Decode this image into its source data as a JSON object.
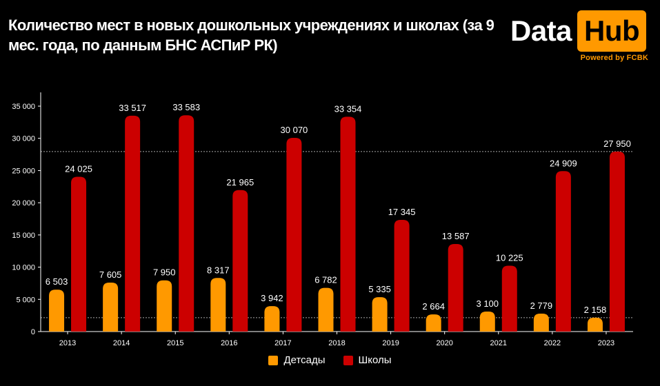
{
  "title": "Количество мест в новых дошкольных учреждениях и школах (за 9 мес. года, по данным БНС АСПиР РК)",
  "logo": {
    "data": "Data",
    "hub": "Hub",
    "powered": "Powered by FCBK"
  },
  "colors": {
    "kindergartens": "#ff9900",
    "schools": "#cc0000",
    "axis": "#ffffff",
    "reference": "#aaaaaa"
  },
  "chart_data": {
    "type": "bar",
    "categories": [
      "2013",
      "2014",
      "2015",
      "2016",
      "2017",
      "2018",
      "2019",
      "2020",
      "2021",
      "2022",
      "2023"
    ],
    "series": [
      {
        "name": "Детсады",
        "values": [
          6503,
          7605,
          7950,
          8317,
          3942,
          6782,
          5335,
          2664,
          3100,
          2779,
          2158
        ],
        "labels": [
          "6 503",
          "7 605",
          "7 950",
          "8 317",
          "3 942",
          "6 782",
          "5 335",
          "2 664",
          "3 100",
          "2 779",
          "2 158"
        ]
      },
      {
        "name": "Школы",
        "values": [
          24025,
          33517,
          33583,
          21965,
          30070,
          33354,
          17345,
          13587,
          10225,
          24909,
          27950
        ],
        "labels": [
          "24 025",
          "33 517",
          "33 583",
          "21 965",
          "30 070",
          "33 354",
          "17 345",
          "13 587",
          "10 225",
          "24 909",
          "27 950"
        ]
      }
    ],
    "ylim": [
      0,
      35000
    ],
    "yticks": [
      0,
      5000,
      10000,
      15000,
      20000,
      25000,
      30000,
      35000
    ],
    "ytick_labels": [
      "0",
      "5 000",
      "10 000",
      "15 000",
      "20 000",
      "25 000",
      "30 000",
      "35 000"
    ],
    "reference_lines": [
      2158,
      27950
    ],
    "legend_position": "bottom"
  }
}
